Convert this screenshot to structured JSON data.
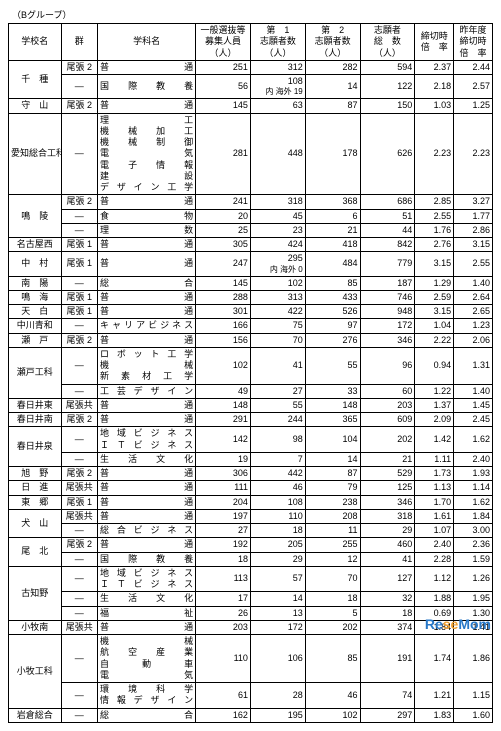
{
  "group_label": "（Bグループ）",
  "headers": {
    "school": "学校名",
    "gun": "群",
    "dept": "学科名",
    "capacity": "一般選抜等\n募集人員\n（人）",
    "app1": "第　1\n志願者数\n（人）",
    "app2": "第　2\n志願者数\n（人）",
    "total": "志願者\n総　数\n（人）",
    "ratio": "締切時\n倍　率",
    "prev_ratio": "昨年度\n締切時\n倍　率"
  },
  "rows": [
    {
      "school": "千　種",
      "gun": "尾張 2",
      "dept": "普　　　　通",
      "cap": "251",
      "a1": "312",
      "a2": "282",
      "tot": "594",
      "r": "2.37",
      "pr": "2.44"
    },
    {
      "school": "",
      "gun": "―",
      "dept": "国 際 教 養",
      "cap": "56",
      "a1": "108",
      "a1sub": "内 海外 19",
      "a2": "14",
      "tot": "122",
      "r": "2.18",
      "pr": "2.57"
    },
    {
      "school": "守　山",
      "gun": "尾張 2",
      "dept": "普　　　　通",
      "cap": "145",
      "a1": "63",
      "a2": "87",
      "tot": "150",
      "r": "1.03",
      "pr": "1.25"
    },
    {
      "school": "愛知総合工科",
      "gun": "―",
      "dept": "理　　　　工\n機　械　加　工\n機　械　制　御\n電　　　　気\n電　子　情　報\n建　　　　設\nデ ザ イ ン 工 学",
      "cap": "281",
      "a1": "448",
      "a2": "178",
      "tot": "626",
      "r": "2.23",
      "pr": "2.23"
    },
    {
      "school": "鳴　陵",
      "gun": "尾張 2",
      "dept": "普　　　　通",
      "cap": "241",
      "a1": "318",
      "a2": "368",
      "tot": "686",
      "r": "2.85",
      "pr": "3.27"
    },
    {
      "school": "",
      "gun": "―",
      "dept": "食　　　　物",
      "cap": "20",
      "a1": "45",
      "a2": "6",
      "tot": "51",
      "r": "2.55",
      "pr": "1.77"
    },
    {
      "school": "",
      "gun": "―",
      "dept": "理　　　　数",
      "cap": "25",
      "a1": "23",
      "a2": "21",
      "tot": "44",
      "r": "1.76",
      "pr": "2.86"
    },
    {
      "school": "名古屋西",
      "gun": "尾張 1",
      "dept": "普　　　　通",
      "cap": "305",
      "a1": "424",
      "a2": "418",
      "tot": "842",
      "r": "2.76",
      "pr": "3.15"
    },
    {
      "school": "中　村",
      "gun": "尾張 1",
      "dept": "普　　　　通",
      "cap": "247",
      "a1": "295",
      "a1sub": "内 海外 0",
      "a2": "484",
      "tot": "779",
      "r": "3.15",
      "pr": "2.55"
    },
    {
      "school": "南　陽",
      "gun": "―",
      "dept": "総　　　　合",
      "cap": "145",
      "a1": "102",
      "a2": "85",
      "tot": "187",
      "r": "1.29",
      "pr": "1.40"
    },
    {
      "school": "鳴　海",
      "gun": "尾張 1",
      "dept": "普　　　　通",
      "cap": "288",
      "a1": "313",
      "a2": "433",
      "tot": "746",
      "r": "2.59",
      "pr": "2.64"
    },
    {
      "school": "天　白",
      "gun": "尾張 1",
      "dept": "普　　　　通",
      "cap": "301",
      "a1": "422",
      "a2": "526",
      "tot": "948",
      "r": "3.15",
      "pr": "2.65"
    },
    {
      "school": "中川青和",
      "gun": "―",
      "dept": "キャリアビジネス",
      "cap": "166",
      "a1": "75",
      "a2": "97",
      "tot": "172",
      "r": "1.04",
      "pr": "1.23"
    },
    {
      "school": "瀬　戸",
      "gun": "尾張 2",
      "dept": "普　　　　通",
      "cap": "156",
      "a1": "70",
      "a2": "276",
      "tot": "346",
      "r": "2.22",
      "pr": "2.06"
    },
    {
      "school": "瀬戸工科",
      "gun": "―",
      "dept": "ロボット工学\n機　　　　械\n新　素　材　工　学",
      "cap": "102",
      "a1": "41",
      "a2": "55",
      "tot": "96",
      "r": "0.94",
      "pr": "1.31"
    },
    {
      "school": "",
      "gun": "―",
      "dept": "工 芸 デ ザ イ ン",
      "cap": "49",
      "a1": "27",
      "a2": "33",
      "tot": "60",
      "r": "1.22",
      "pr": "1.40"
    },
    {
      "school": "春日井東",
      "gun": "尾張共",
      "dept": "普　　　　通",
      "cap": "148",
      "a1": "55",
      "a2": "148",
      "tot": "203",
      "r": "1.37",
      "pr": "1.45"
    },
    {
      "school": "春日井南",
      "gun": "尾張 2",
      "dept": "普　　　　通",
      "cap": "291",
      "a1": "244",
      "a2": "365",
      "tot": "609",
      "r": "2.09",
      "pr": "2.45"
    },
    {
      "school": "春日井泉",
      "gun": "―",
      "dept": "地 域 ビ ジ ネ ス\nＩＴビジネス",
      "cap": "142",
      "a1": "98",
      "a2": "104",
      "tot": "202",
      "r": "1.42",
      "pr": "1.62"
    },
    {
      "school": "",
      "gun": "―",
      "dept": "生　活　文　化",
      "cap": "19",
      "a1": "7",
      "a2": "14",
      "tot": "21",
      "r": "1.11",
      "pr": "2.40"
    },
    {
      "school": "旭　野",
      "gun": "尾張 2",
      "dept": "普　　　　通",
      "cap": "306",
      "a1": "442",
      "a2": "87",
      "tot": "529",
      "r": "1.73",
      "pr": "1.93"
    },
    {
      "school": "日　進",
      "gun": "尾張共",
      "dept": "普　　　　通",
      "cap": "111",
      "a1": "46",
      "a2": "79",
      "tot": "125",
      "r": "1.13",
      "pr": "1.14"
    },
    {
      "school": "東　郷",
      "gun": "尾張 1",
      "dept": "普　　　　通",
      "cap": "204",
      "a1": "108",
      "a2": "238",
      "tot": "346",
      "r": "1.70",
      "pr": "1.62"
    },
    {
      "school": "犬　山",
      "gun": "尾張共",
      "dept": "普　　　　通",
      "cap": "197",
      "a1": "110",
      "a2": "208",
      "tot": "318",
      "r": "1.61",
      "pr": "1.84"
    },
    {
      "school": "",
      "gun": "―",
      "dept": "総 合 ビ ジ ネ ス",
      "cap": "27",
      "a1": "18",
      "a2": "11",
      "tot": "29",
      "r": "1.07",
      "pr": "3.00"
    },
    {
      "school": "尾　北",
      "gun": "尾張 2",
      "dept": "普　　　　通",
      "cap": "192",
      "a1": "205",
      "a2": "255",
      "tot": "460",
      "r": "2.40",
      "pr": "2.36"
    },
    {
      "school": "",
      "gun": "―",
      "dept": "国 際 教 養",
      "cap": "18",
      "a1": "29",
      "a2": "12",
      "tot": "41",
      "r": "2.28",
      "pr": "1.59"
    },
    {
      "school": "古知野",
      "gun": "―",
      "dept": "地 域 ビ ジ ネ ス\nＩＴビジネス",
      "cap": "113",
      "a1": "57",
      "a2": "70",
      "tot": "127",
      "r": "1.12",
      "pr": "1.26"
    },
    {
      "school": "",
      "gun": "―",
      "dept": "生　活　文　化",
      "cap": "17",
      "a1": "14",
      "a2": "18",
      "tot": "32",
      "r": "1.88",
      "pr": "1.95"
    },
    {
      "school": "",
      "gun": "―",
      "dept": "福　　　　祉",
      "cap": "26",
      "a1": "13",
      "a2": "5",
      "tot": "18",
      "r": "0.69",
      "pr": "1.30"
    },
    {
      "school": "小牧南",
      "gun": "尾張共",
      "dept": "普　　　　通",
      "cap": "203",
      "a1": "172",
      "a2": "202",
      "tot": "374",
      "r": "1.84",
      "pr": "1.41"
    },
    {
      "school": "小牧工科",
      "gun": "―",
      "dept": "機　　　　械\n航　空　産　業\n自　動　車\n電　　　　気",
      "cap": "110",
      "a1": "106",
      "a2": "85",
      "tot": "191",
      "r": "1.74",
      "pr": "1.86"
    },
    {
      "school": "",
      "gun": "―",
      "dept": "環　境　科　学\n情報デザイン",
      "cap": "61",
      "a1": "28",
      "a2": "46",
      "tot": "74",
      "r": "1.21",
      "pr": "1.15"
    },
    {
      "school": "岩倉総合",
      "gun": "―",
      "dept": "総　　　　合",
      "cap": "162",
      "a1": "195",
      "a2": "102",
      "tot": "297",
      "r": "1.83",
      "pr": "1.60"
    }
  ],
  "logo": {
    "re": "Re",
    "se": "se",
    "mom": "Mom"
  }
}
